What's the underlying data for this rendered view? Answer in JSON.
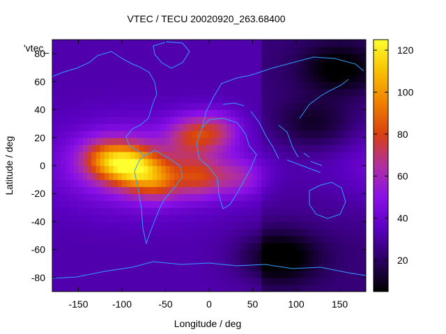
{
  "chart_data": {
    "type": "heatmap",
    "title": "VTEC / TECU 20020920_263.68400",
    "xlabel": "Longitude / deg",
    "ylabel": "Latitude / deg",
    "xlim": [
      -180,
      180
    ],
    "ylim": [
      -90,
      90
    ],
    "xticks": [
      -150,
      -100,
      -50,
      0,
      50,
      100,
      150
    ],
    "yticks": [
      -80,
      -60,
      -40,
      -20,
      0,
      20,
      40,
      60,
      80
    ],
    "series_label": "'vtec_",
    "colorbar": {
      "range": [
        5,
        125
      ],
      "ticks": [
        20,
        40,
        60,
        80,
        100,
        120
      ],
      "palette": [
        "#000000",
        "#2a0060",
        "#5a00c0",
        "#8a10e8",
        "#b030a0",
        "#d84010",
        "#f08000",
        "#f8c000",
        "#ffff30"
      ]
    },
    "features": {
      "background_tec": 32,
      "equatorial_anomaly_crests": [
        {
          "lon": -90,
          "lat": 0,
          "peak": 124
        },
        {
          "lon": -120,
          "lat": 5,
          "peak": 95
        },
        {
          "lon": -60,
          "lat": -10,
          "peak": 90
        },
        {
          "lon": -20,
          "lat": 22,
          "peak": 82
        },
        {
          "lon": 10,
          "lat": 25,
          "peak": 78
        },
        {
          "lon": -10,
          "lat": -8,
          "peak": 85
        },
        {
          "lon": 35,
          "lat": -8,
          "peak": 70
        }
      ],
      "low_regions": [
        {
          "lon": 80,
          "lat": -65,
          "min": 6
        },
        {
          "lon": 150,
          "lat": 70,
          "min": 10
        },
        {
          "lon": 120,
          "lat": 30,
          "min": 15
        }
      ]
    }
  }
}
